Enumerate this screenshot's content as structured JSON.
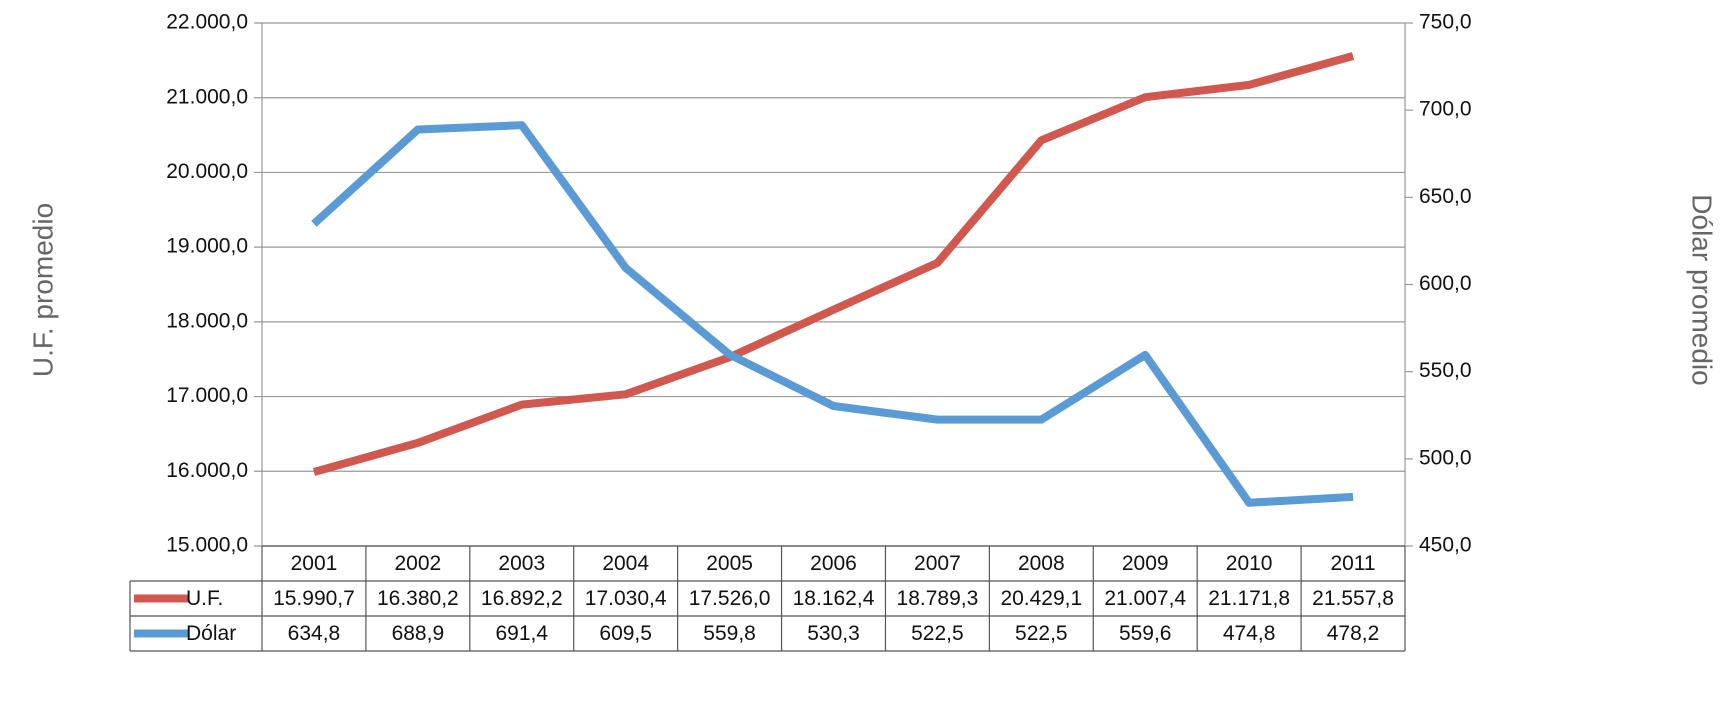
{
  "chart_data": {
    "type": "line",
    "categories": [
      "2001",
      "2002",
      "2003",
      "2004",
      "2005",
      "2006",
      "2007",
      "2008",
      "2009",
      "2010",
      "2011"
    ],
    "series": [
      {
        "name": "U.F.",
        "color": "#d0584f",
        "values": [
          15990.7,
          16380.2,
          16892.2,
          17030.4,
          17526.0,
          18162.4,
          18789.3,
          20429.1,
          21007.4,
          21171.8,
          21557.8
        ],
        "value_labels": [
          "15.990,7",
          "16.380,2",
          "16.892,2",
          "17.030,4",
          "17.526,0",
          "18.162,4",
          "18.789,3",
          "20.429,1",
          "21.007,4",
          "21.171,8",
          "21.557,8"
        ]
      },
      {
        "name": "Dólar",
        "color": "#5b9bd5",
        "axis": "y2",
        "values": [
          634.8,
          688.9,
          691.4,
          609.5,
          559.8,
          530.3,
          522.5,
          522.5,
          559.6,
          474.8,
          478.2
        ],
        "value_labels": [
          "634,8",
          "688,9",
          "691,4",
          "609,5",
          "559,8",
          "530,3",
          "522,5",
          "522,5",
          "559,6",
          "474,8",
          "478,2"
        ]
      }
    ],
    "ylabel": "U.F. promedio",
    "y2label": "Dólar promedio",
    "ylim": [
      15000,
      22000
    ],
    "yticks": [
      {
        "value": 15000,
        "label": "15.000,0"
      },
      {
        "value": 16000,
        "label": "16.000,0"
      },
      {
        "value": 17000,
        "label": "17.000,0"
      },
      {
        "value": 18000,
        "label": "18.000,0"
      },
      {
        "value": 19000,
        "label": "19.000,0"
      },
      {
        "value": 20000,
        "label": "20.000,0"
      },
      {
        "value": 21000,
        "label": "21.000,0"
      },
      {
        "value": 22000,
        "label": "22.000,0"
      }
    ],
    "y2lim": [
      450,
      750
    ],
    "y2ticks": [
      {
        "value": 450,
        "label": "450,0"
      },
      {
        "value": 500,
        "label": "500,0"
      },
      {
        "value": 550,
        "label": "550,0"
      },
      {
        "value": 600,
        "label": "600,0"
      },
      {
        "value": 650,
        "label": "650,0"
      },
      {
        "value": 700,
        "label": "700,0"
      },
      {
        "value": 750,
        "label": "750,0"
      }
    ],
    "grid": true
  }
}
